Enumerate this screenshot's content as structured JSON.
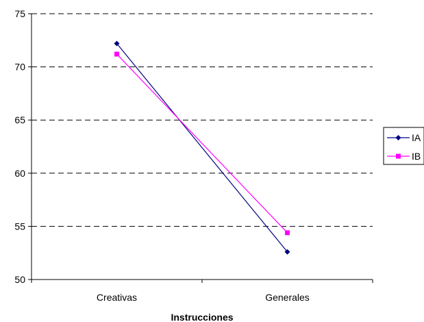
{
  "chart_data": {
    "type": "line",
    "title": "",
    "xlabel": "Instrucciones",
    "ylabel": "",
    "categories": [
      "Creativas",
      "Generales"
    ],
    "ylim": [
      50,
      75
    ],
    "yticks": [
      50,
      55,
      60,
      65,
      70,
      75
    ],
    "grid": true,
    "legend_position": "right",
    "series": [
      {
        "name": "IA",
        "values": [
          72.2,
          52.6
        ],
        "color": "#000080",
        "marker": "diamond"
      },
      {
        "name": "IB",
        "values": [
          71.2,
          54.4
        ],
        "color": "#ff00ff",
        "marker": "square"
      }
    ]
  }
}
